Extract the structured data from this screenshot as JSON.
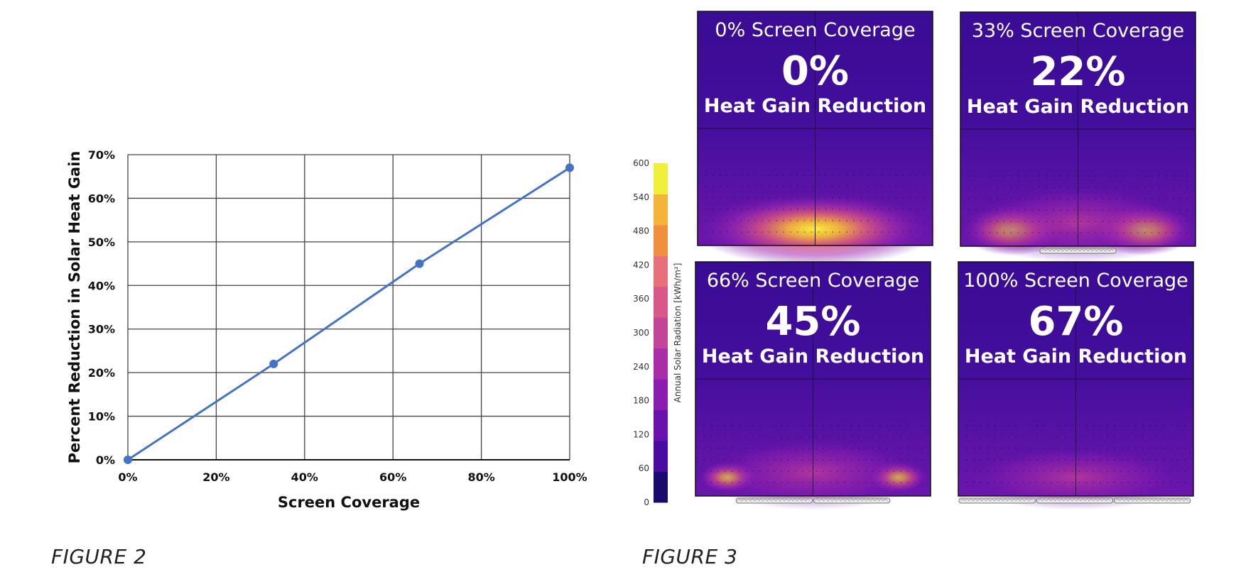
{
  "figure2": {
    "caption": "FIGURE 2",
    "chart_data": {
      "type": "line",
      "title": "",
      "xlabel": "Screen Coverage",
      "ylabel": "Percent Reduction in Solar Heat Gain",
      "xlim": [
        0,
        100
      ],
      "ylim": [
        0,
        70
      ],
      "x_ticks": [
        "0%",
        "20%",
        "40%",
        "60%",
        "80%",
        "100%"
      ],
      "y_ticks": [
        "0%",
        "10%",
        "20%",
        "30%",
        "40%",
        "50%",
        "60%",
        "70%"
      ],
      "grid": true,
      "series": [
        {
          "color": "#4472C4",
          "points": [
            {
              "x": 0,
              "y": 0
            },
            {
              "x": 33,
              "y": 22
            },
            {
              "x": 66,
              "y": 45
            },
            {
              "x": 100,
              "y": 67
            }
          ]
        }
      ]
    }
  },
  "figure3": {
    "caption": "FIGURE 3",
    "colorbar": {
      "title": "Annual Solar Radiation [kWh/m²]",
      "ticks": [
        "0",
        "60",
        "120",
        "180",
        "240",
        "300",
        "360",
        "420",
        "480",
        "540",
        "600"
      ],
      "colors": [
        "#1b0a6e",
        "#4a0ca0",
        "#6a12ac",
        "#8a1cb0",
        "#a82ea8",
        "#c2459a",
        "#d8588a",
        "#e8707a",
        "#f0903f",
        "#f4b43a",
        "#f0f03a"
      ]
    },
    "panels": [
      {
        "coverage": "0% Screen Coverage",
        "value": "0%",
        "label": "Heat Gain Reduction",
        "screens": 0
      },
      {
        "coverage": "33% Screen Coverage",
        "value": "22%",
        "label": "Heat Gain Reduction",
        "screens": 1
      },
      {
        "coverage": "66% Screen Coverage",
        "value": "45%",
        "label": "Heat Gain Reduction",
        "screens": 2
      },
      {
        "coverage": "100% Screen Coverage",
        "value": "67%",
        "label": "Heat Gain Reduction",
        "screens": 3
      }
    ],
    "colors": {
      "panel_bg": "#3a0c94"
    }
  }
}
